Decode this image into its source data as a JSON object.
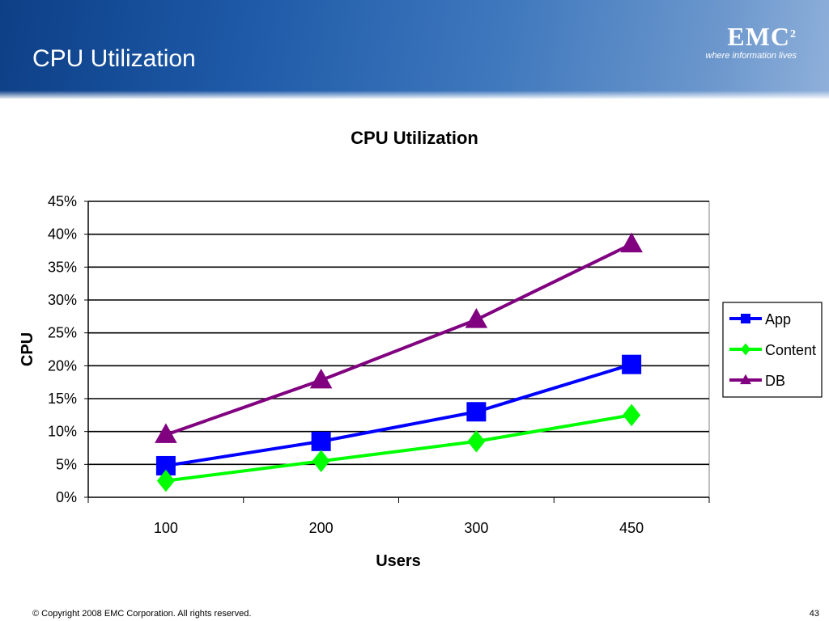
{
  "slide": {
    "title": "CPU Utilization",
    "logo": {
      "name": "EMC",
      "superscript": "2",
      "tagline": "where information lives"
    },
    "copyright": "© Copyright 2008 EMC Corporation. All rights reserved.",
    "page_number": "43"
  },
  "chart_data": {
    "type": "line",
    "title": "CPU Utilization",
    "xlabel": "Users",
    "ylabel": "CPU",
    "categories": [
      "100",
      "200",
      "300",
      "450"
    ],
    "y_tick_labels": [
      "0%",
      "5%",
      "10%",
      "15%",
      "20%",
      "25%",
      "30%",
      "35%",
      "40%",
      "45%"
    ],
    "ylim": [
      0,
      45
    ],
    "grid": true,
    "legend_position": "right",
    "series": [
      {
        "name": "App",
        "values": [
          4.8,
          8.5,
          13.0,
          20.2
        ],
        "color": "#0000ff",
        "marker": "square"
      },
      {
        "name": "Content",
        "values": [
          2.5,
          5.5,
          8.5,
          12.5
        ],
        "color": "#00ff00",
        "marker": "diamond"
      },
      {
        "name": "DB",
        "values": [
          9.5,
          17.8,
          27.0,
          38.5
        ],
        "color": "#800080",
        "marker": "triangle"
      }
    ]
  }
}
